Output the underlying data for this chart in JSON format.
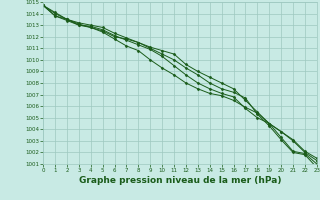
{
  "background_color": "#c8eae4",
  "grid_color": "#9ec8c0",
  "line_color": "#1a5c1a",
  "marker_color": "#1a5c1a",
  "xlabel": "Graphe pression niveau de la mer (hPa)",
  "xlabel_fontsize": 6.5,
  "ylim": [
    1001,
    1015
  ],
  "xlim": [
    0,
    23
  ],
  "yticks": [
    1001,
    1002,
    1003,
    1004,
    1005,
    1006,
    1007,
    1008,
    1009,
    1010,
    1011,
    1012,
    1013,
    1014,
    1015
  ],
  "xticks": [
    0,
    1,
    2,
    3,
    4,
    5,
    6,
    7,
    8,
    9,
    10,
    11,
    12,
    13,
    14,
    15,
    16,
    17,
    18,
    19,
    20,
    21,
    22,
    23
  ],
  "series": [
    [
      1014.7,
      1013.8,
      1013.5,
      1013.2,
      1013.0,
      1012.8,
      1012.3,
      1011.9,
      1011.5,
      1011.0,
      1010.5,
      1010.0,
      1009.3,
      1008.7,
      1008.0,
      1007.5,
      1007.2,
      1006.7,
      1005.3,
      1004.3,
      1003.1,
      1002.0,
      1001.8,
      1000.7
    ],
    [
      1014.7,
      1014.1,
      1013.5,
      1013.1,
      1012.8,
      1012.5,
      1012.0,
      1011.8,
      1011.5,
      1011.1,
      1010.8,
      1010.5,
      1009.6,
      1009.0,
      1008.5,
      1008.0,
      1007.5,
      1006.5,
      1005.5,
      1004.5,
      1003.3,
      1002.1,
      1001.9,
      1001.0
    ],
    [
      1014.7,
      1014.0,
      1013.5,
      1013.0,
      1012.9,
      1012.6,
      1012.1,
      1011.7,
      1011.3,
      1010.9,
      1010.3,
      1009.5,
      1008.7,
      1008.0,
      1007.5,
      1007.1,
      1006.8,
      1005.8,
      1005.0,
      1004.5,
      1003.8,
      1003.1,
      1002.1,
      1001.5
    ],
    [
      1014.7,
      1013.8,
      1013.4,
      1013.0,
      1012.8,
      1012.4,
      1011.8,
      1011.2,
      1010.8,
      1010.0,
      1009.3,
      1008.7,
      1008.0,
      1007.5,
      1007.1,
      1006.9,
      1006.5,
      1005.9,
      1005.4,
      1004.5,
      1003.8,
      1003.0,
      1002.0,
      1001.3
    ]
  ]
}
